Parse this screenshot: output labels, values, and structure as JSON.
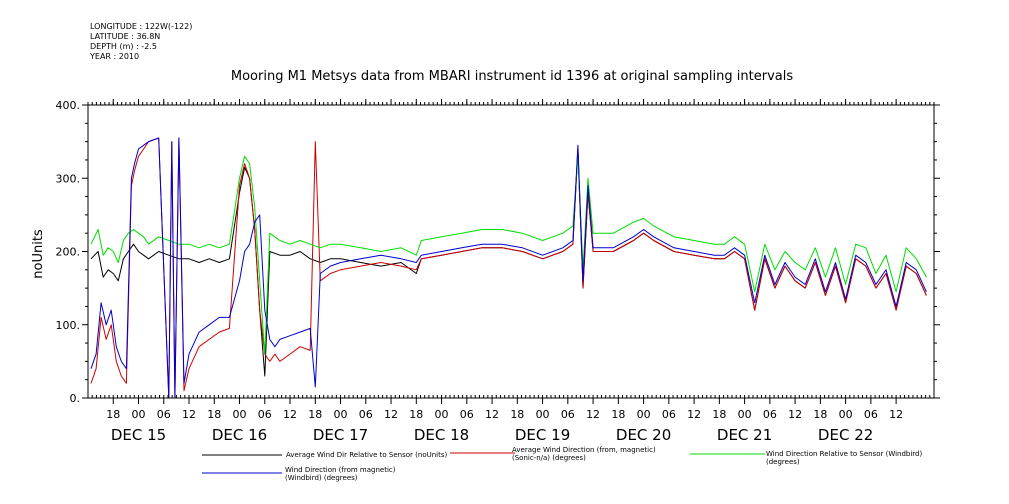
{
  "meta": {
    "longitude": "LONGITUDE : 122W(-122)",
    "latitude": "LATITUDE : 36.8N",
    "depth": "DEPTH (m) : -2.5",
    "year": "YEAR : 2010"
  },
  "chart_data": {
    "type": "line",
    "title": "Mooring M1 Metsys data from MBARI instrument id 1396 at original sampling intervals",
    "ylabel": "noUnits",
    "xlabel": "",
    "xlim": [
      14.5,
      22.875
    ],
    "ylim": [
      0,
      400
    ],
    "y_ticks": [
      0,
      100,
      200,
      300,
      400
    ],
    "y_tick_labels": [
      "0.",
      "100.",
      "200.",
      "300.",
      "400."
    ],
    "x_hour_ticks": [
      {
        "x": 14.75,
        "label": "18"
      },
      {
        "x": 15.0,
        "label": "00"
      },
      {
        "x": 15.25,
        "label": "06"
      },
      {
        "x": 15.5,
        "label": "12"
      },
      {
        "x": 15.75,
        "label": "18"
      },
      {
        "x": 16.0,
        "label": "00"
      },
      {
        "x": 16.25,
        "label": "06"
      },
      {
        "x": 16.5,
        "label": "12"
      },
      {
        "x": 16.75,
        "label": "18"
      },
      {
        "x": 17.0,
        "label": "00"
      },
      {
        "x": 17.25,
        "label": "06"
      },
      {
        "x": 17.5,
        "label": "12"
      },
      {
        "x": 17.75,
        "label": "18"
      },
      {
        "x": 18.0,
        "label": "00"
      },
      {
        "x": 18.25,
        "label": "06"
      },
      {
        "x": 18.5,
        "label": "12"
      },
      {
        "x": 18.75,
        "label": "18"
      },
      {
        "x": 19.0,
        "label": "00"
      },
      {
        "x": 19.25,
        "label": "06"
      },
      {
        "x": 19.5,
        "label": "12"
      },
      {
        "x": 19.75,
        "label": "18"
      },
      {
        "x": 20.0,
        "label": "00"
      },
      {
        "x": 20.25,
        "label": "06"
      },
      {
        "x": 20.5,
        "label": "12"
      },
      {
        "x": 20.75,
        "label": "18"
      },
      {
        "x": 21.0,
        "label": "00"
      },
      {
        "x": 21.25,
        "label": "06"
      },
      {
        "x": 21.5,
        "label": "12"
      },
      {
        "x": 21.75,
        "label": "18"
      },
      {
        "x": 22.0,
        "label": "00"
      },
      {
        "x": 22.25,
        "label": "06"
      },
      {
        "x": 22.5,
        "label": "12"
      }
    ],
    "x_day_labels": [
      {
        "x": 15.0,
        "label": "DEC 15"
      },
      {
        "x": 16.0,
        "label": "DEC 16"
      },
      {
        "x": 17.0,
        "label": "DEC 17"
      },
      {
        "x": 18.0,
        "label": "DEC 18"
      },
      {
        "x": 19.0,
        "label": "DEC 19"
      },
      {
        "x": 20.0,
        "label": "DEC 20"
      },
      {
        "x": 21.0,
        "label": "DEC 21"
      },
      {
        "x": 22.0,
        "label": "DEC 22"
      }
    ],
    "legend": "bottom",
    "series": [
      {
        "name": "Average Wind Dir Relative to Sensor (noUnits)",
        "color": "#000000",
        "x": [
          14.53,
          14.6,
          14.65,
          14.7,
          14.75,
          14.8,
          14.85,
          14.9,
          14.95,
          15.0,
          15.05,
          15.1,
          15.2,
          15.3,
          15.4,
          15.5,
          15.6,
          15.7,
          15.8,
          15.9,
          16.0,
          16.05,
          16.1,
          16.15,
          16.2,
          16.25,
          16.3,
          16.4,
          16.5,
          16.6,
          16.7,
          16.8,
          16.9,
          17.0,
          17.2,
          17.4,
          17.6,
          17.75,
          17.8,
          18.0,
          18.2,
          18.4,
          18.6,
          18.8,
          19.0,
          19.2,
          19.3,
          19.35,
          19.4,
          19.45,
          19.5,
          19.7,
          19.9,
          20.0,
          20.1,
          20.3,
          20.5,
          20.7,
          20.8,
          20.85,
          20.9,
          21.0,
          21.1,
          21.2,
          21.3,
          21.4,
          21.5,
          21.6,
          21.7,
          21.8,
          21.9,
          22.0,
          22.1,
          22.2,
          22.3,
          22.4,
          22.5,
          22.6,
          22.7,
          22.8
        ],
        "y": [
          190,
          200,
          165,
          175,
          170,
          160,
          190,
          200,
          210,
          200,
          195,
          190,
          200,
          195,
          190,
          190,
          185,
          190,
          185,
          190,
          280,
          315,
          300,
          230,
          120,
          30,
          200,
          195,
          195,
          200,
          190,
          185,
          190,
          190,
          185,
          180,
          185,
          170,
          190,
          195,
          200,
          205,
          205,
          200,
          190,
          200,
          210,
          340,
          150,
          280,
          200,
          200,
          215,
          225,
          215,
          200,
          195,
          190,
          190,
          195,
          200,
          190,
          120,
          190,
          150,
          180,
          160,
          150,
          185,
          140,
          180,
          130,
          190,
          180,
          150,
          170,
          120,
          180,
          170,
          140
        ]
      },
      {
        "name": "Average Wind Direction (from, magnetic) (Sonic-n/a) (degrees)",
        "color": "#cc0000",
        "x": [
          14.53,
          14.58,
          14.63,
          14.68,
          14.73,
          14.78,
          14.83,
          14.88,
          14.93,
          14.96,
          15.0,
          15.05,
          15.1,
          15.2,
          15.3,
          15.33,
          15.36,
          15.4,
          15.45,
          15.5,
          15.6,
          15.7,
          15.8,
          15.9,
          16.0,
          16.05,
          16.1,
          16.15,
          16.2,
          16.25,
          16.3,
          16.35,
          16.4,
          16.5,
          16.6,
          16.7,
          16.75,
          16.8,
          16.9,
          17.0,
          17.2,
          17.4,
          17.6,
          17.75,
          17.8,
          18.0,
          18.2,
          18.4,
          18.6,
          18.8,
          19.0,
          19.2,
          19.3,
          19.35,
          19.4,
          19.45,
          19.5,
          19.7,
          19.9,
          20.0,
          20.1,
          20.3,
          20.5,
          20.7,
          20.8,
          20.85,
          20.9,
          21.0,
          21.1,
          21.2,
          21.3,
          21.4,
          21.5,
          21.6,
          21.7,
          21.8,
          21.9,
          22.0,
          22.1,
          22.2,
          22.3,
          22.4,
          22.5,
          22.6,
          22.7,
          22.8
        ],
        "y": [
          20,
          40,
          110,
          80,
          100,
          50,
          30,
          20,
          290,
          310,
          330,
          340,
          350,
          355,
          0,
          350,
          0,
          355,
          10,
          40,
          70,
          80,
          90,
          95,
          290,
          320,
          300,
          230,
          120,
          60,
          50,
          60,
          50,
          60,
          70,
          65,
          350,
          160,
          170,
          175,
          180,
          185,
          180,
          175,
          190,
          195,
          200,
          205,
          205,
          200,
          190,
          200,
          210,
          340,
          150,
          280,
          200,
          200,
          215,
          225,
          215,
          200,
          195,
          190,
          190,
          195,
          200,
          190,
          120,
          190,
          150,
          180,
          160,
          150,
          185,
          140,
          180,
          130,
          190,
          180,
          150,
          170,
          120,
          180,
          170,
          140
        ]
      },
      {
        "name": "Wind Direction Relative to Sensor (Windbird) (degrees)",
        "color": "#00dd00",
        "x": [
          14.53,
          14.6,
          14.65,
          14.7,
          14.75,
          14.8,
          14.85,
          14.9,
          14.95,
          15.0,
          15.05,
          15.1,
          15.2,
          15.3,
          15.4,
          15.5,
          15.6,
          15.7,
          15.8,
          15.9,
          16.0,
          16.05,
          16.1,
          16.15,
          16.2,
          16.25,
          16.3,
          16.4,
          16.5,
          16.6,
          16.7,
          16.8,
          16.9,
          17.0,
          17.2,
          17.4,
          17.6,
          17.75,
          17.8,
          18.0,
          18.2,
          18.4,
          18.6,
          18.8,
          19.0,
          19.2,
          19.3,
          19.35,
          19.4,
          19.45,
          19.5,
          19.7,
          19.9,
          20.0,
          20.1,
          20.3,
          20.5,
          20.7,
          20.8,
          20.85,
          20.9,
          21.0,
          21.1,
          21.2,
          21.3,
          21.4,
          21.5,
          21.6,
          21.7,
          21.8,
          21.9,
          22.0,
          22.1,
          22.2,
          22.3,
          22.4,
          22.5,
          22.6,
          22.7,
          22.8
        ],
        "y": [
          210,
          230,
          195,
          205,
          200,
          185,
          215,
          225,
          230,
          225,
          220,
          210,
          220,
          215,
          210,
          210,
          205,
          210,
          205,
          210,
          300,
          330,
          320,
          260,
          160,
          60,
          225,
          215,
          210,
          215,
          210,
          205,
          210,
          210,
          205,
          200,
          205,
          195,
          215,
          220,
          225,
          230,
          230,
          225,
          215,
          225,
          235,
          330,
          175,
          300,
          225,
          225,
          240,
          245,
          235,
          220,
          215,
          210,
          210,
          215,
          220,
          210,
          145,
          210,
          175,
          200,
          185,
          175,
          205,
          165,
          205,
          155,
          210,
          205,
          170,
          195,
          145,
          205,
          190,
          165
        ]
      },
      {
        "name": "Wind Direction (from magnetic) (Windbird) (degrees)",
        "color": "#0000cc",
        "x": [
          14.53,
          14.58,
          14.63,
          14.68,
          14.73,
          14.78,
          14.83,
          14.88,
          14.93,
          14.96,
          15.0,
          15.05,
          15.1,
          15.2,
          15.3,
          15.33,
          15.36,
          15.4,
          15.45,
          15.5,
          15.6,
          15.7,
          15.8,
          15.9,
          16.0,
          16.05,
          16.1,
          16.15,
          16.2,
          16.25,
          16.3,
          16.35,
          16.4,
          16.5,
          16.6,
          16.7,
          16.75,
          16.8,
          16.9,
          17.0,
          17.2,
          17.4,
          17.6,
          17.75,
          17.8,
          18.0,
          18.2,
          18.4,
          18.6,
          18.8,
          19.0,
          19.2,
          19.3,
          19.35,
          19.4,
          19.45,
          19.5,
          19.7,
          19.9,
          20.0,
          20.1,
          20.3,
          20.5,
          20.7,
          20.8,
          20.85,
          20.9,
          21.0,
          21.1,
          21.2,
          21.3,
          21.4,
          21.5,
          21.6,
          21.7,
          21.8,
          21.9,
          22.0,
          22.1,
          22.2,
          22.3,
          22.4,
          22.5,
          22.6,
          22.7,
          22.8
        ],
        "y": [
          40,
          60,
          130,
          100,
          120,
          70,
          50,
          40,
          300,
          320,
          340,
          345,
          350,
          355,
          0,
          350,
          0,
          355,
          20,
          60,
          90,
          100,
          110,
          110,
          160,
          200,
          210,
          240,
          250,
          120,
          80,
          70,
          80,
          85,
          90,
          95,
          15,
          170,
          180,
          185,
          190,
          195,
          190,
          185,
          195,
          200,
          205,
          210,
          210,
          205,
          195,
          205,
          215,
          345,
          160,
          290,
          205,
          205,
          220,
          230,
          220,
          205,
          200,
          195,
          195,
          200,
          205,
          195,
          130,
          195,
          155,
          185,
          165,
          155,
          190,
          145,
          185,
          135,
          195,
          185,
          155,
          175,
          125,
          185,
          175,
          145
        ]
      }
    ]
  }
}
